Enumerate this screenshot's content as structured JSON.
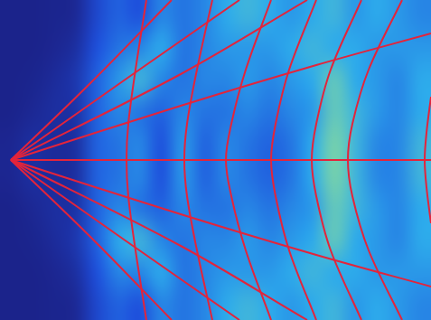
{
  "chart_data": {
    "type": "heatmap",
    "xlim": [
      0,
      477
    ],
    "ylim": [
      -177,
      177
    ],
    "zlim": [
      0,
      1
    ],
    "grid": false,
    "tick_labels": false,
    "cells": [
      [
        0.03,
        0.03,
        0.04,
        0.06,
        0.25,
        0.35,
        0.3,
        0.45,
        0.4,
        0.45,
        0.55,
        0.6,
        0.55,
        0.5,
        0.55,
        0.6,
        0.5,
        0.55,
        0.5,
        0.45
      ],
      [
        0.03,
        0.03,
        0.05,
        0.1,
        0.3,
        0.4,
        0.45,
        0.55,
        0.4,
        0.45,
        0.5,
        0.5,
        0.5,
        0.55,
        0.6,
        0.55,
        0.55,
        0.5,
        0.5,
        0.5
      ],
      [
        0.03,
        0.04,
        0.08,
        0.15,
        0.35,
        0.5,
        0.6,
        0.45,
        0.4,
        0.45,
        0.45,
        0.5,
        0.45,
        0.5,
        0.55,
        0.7,
        0.55,
        0.5,
        0.45,
        0.55
      ],
      [
        0.03,
        0.06,
        0.1,
        0.12,
        0.35,
        0.45,
        0.4,
        0.35,
        0.45,
        0.4,
        0.4,
        0.45,
        0.4,
        0.45,
        0.5,
        0.7,
        0.6,
        0.5,
        0.45,
        0.55
      ],
      [
        0.05,
        0.1,
        0.08,
        0.1,
        0.35,
        0.4,
        0.45,
        0.3,
        0.5,
        0.35,
        0.45,
        0.4,
        0.35,
        0.4,
        0.55,
        0.75,
        0.6,
        0.45,
        0.45,
        0.6
      ],
      [
        0.05,
        0.1,
        0.08,
        0.1,
        0.35,
        0.4,
        0.45,
        0.3,
        0.5,
        0.35,
        0.45,
        0.4,
        0.35,
        0.4,
        0.55,
        0.75,
        0.6,
        0.45,
        0.45,
        0.6
      ],
      [
        0.03,
        0.06,
        0.1,
        0.12,
        0.35,
        0.45,
        0.4,
        0.35,
        0.45,
        0.4,
        0.4,
        0.45,
        0.4,
        0.45,
        0.5,
        0.7,
        0.6,
        0.5,
        0.45,
        0.55
      ],
      [
        0.03,
        0.04,
        0.08,
        0.15,
        0.35,
        0.55,
        0.6,
        0.45,
        0.4,
        0.45,
        0.45,
        0.5,
        0.45,
        0.5,
        0.55,
        0.7,
        0.55,
        0.5,
        0.45,
        0.55
      ],
      [
        0.03,
        0.03,
        0.05,
        0.1,
        0.3,
        0.45,
        0.45,
        0.55,
        0.4,
        0.45,
        0.5,
        0.5,
        0.5,
        0.55,
        0.6,
        0.55,
        0.55,
        0.5,
        0.5,
        0.5
      ],
      [
        0.03,
        0.03,
        0.04,
        0.06,
        0.25,
        0.35,
        0.3,
        0.45,
        0.4,
        0.45,
        0.55,
        0.6,
        0.55,
        0.5,
        0.55,
        0.6,
        0.5,
        0.55,
        0.5,
        0.45
      ]
    ],
    "series": [
      {
        "type": "line",
        "color": "#e3243b",
        "x": [
          12,
          477
        ],
        "values": [
          0,
          0
        ]
      },
      {
        "type": "line",
        "color": "#e3243b",
        "x": [
          12,
          100,
          190
        ],
        "values": [
          0,
          85,
          177
        ]
      },
      {
        "type": "line",
        "color": "#e3243b",
        "x": [
          12,
          100,
          190
        ],
        "values": [
          0,
          -85,
          -177
        ]
      },
      {
        "type": "line",
        "color": "#e3243b",
        "x": [
          12,
          140,
          265
        ],
        "values": [
          0,
          90,
          177
        ]
      },
      {
        "type": "line",
        "color": "#e3243b",
        "x": [
          12,
          140,
          265
        ],
        "values": [
          0,
          -90,
          -177
        ]
      },
      {
        "type": "line",
        "color": "#e3243b",
        "x": [
          12,
          200,
          340
        ],
        "values": [
          0,
          95,
          177
        ]
      },
      {
        "type": "line",
        "color": "#e3243b",
        "x": [
          12,
          200,
          340
        ],
        "values": [
          0,
          -95,
          -177
        ]
      },
      {
        "type": "line",
        "color": "#e3243b",
        "x": [
          12,
          200,
          350,
          477
        ],
        "values": [
          0,
          60,
          105,
          140
        ]
      },
      {
        "type": "line",
        "color": "#e3243b",
        "x": [
          12,
          200,
          350,
          477
        ],
        "values": [
          0,
          -60,
          -105,
          -140
        ]
      },
      {
        "type": "line",
        "color": "#e3243b",
        "x": [
          162,
          150,
          142,
          140,
          142,
          150,
          162
        ],
        "values": [
          177,
          100,
          40,
          0,
          -40,
          -100,
          -177
        ]
      },
      {
        "type": "line",
        "color": "#e3243b",
        "x": [
          235,
          218,
          207,
          204,
          207,
          218,
          235
        ],
        "values": [
          177,
          100,
          40,
          0,
          -40,
          -100,
          -177
        ]
      },
      {
        "type": "line",
        "color": "#e3243b",
        "x": [
          300,
          272,
          256,
          250,
          256,
          272,
          300
        ],
        "values": [
          177,
          100,
          40,
          0,
          -40,
          -100,
          -177
        ]
      },
      {
        "type": "line",
        "color": "#e3243b",
        "x": [
          350,
          320,
          305,
          300,
          305,
          320,
          350
        ],
        "values": [
          177,
          100,
          40,
          0,
          -40,
          -100,
          -177
        ]
      },
      {
        "type": "line",
        "color": "#e3243b",
        "x": [
          400,
          366,
          350,
          345,
          350,
          366,
          400
        ],
        "values": [
          177,
          100,
          40,
          0,
          -40,
          -100,
          -177
        ]
      },
      {
        "type": "line",
        "color": "#e3243b",
        "x": [
          445,
          408,
          390,
          385,
          390,
          408,
          445
        ],
        "values": [
          177,
          100,
          40,
          0,
          -40,
          -100,
          -177
        ]
      },
      {
        "type": "line",
        "color": "#e3243b",
        "x": [
          477,
          472,
          470,
          472,
          477
        ],
        "values": [
          70,
          30,
          0,
          -30,
          -70
        ]
      }
    ]
  }
}
